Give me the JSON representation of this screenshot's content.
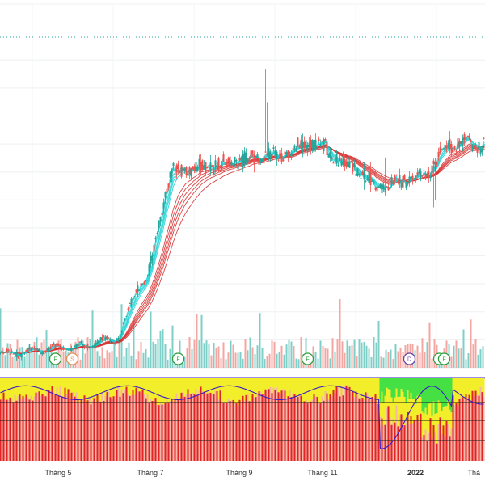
{
  "chart_data": {
    "type": "candlestick",
    "x_axis": {
      "tick_labels": [
        "Tháng 5",
        "Tháng 7",
        "Tháng 9",
        "Tháng 11",
        "2022",
        "Thá"
      ],
      "tick_positions": [
        "2021-05",
        "2021-07",
        "2021-09",
        "2021-11",
        "2022-01",
        "2022-03"
      ],
      "bold": [
        false,
        false,
        false,
        false,
        true,
        false
      ]
    },
    "price": {
      "start": 14,
      "key_points": [
        [
          0,
          14
        ],
        [
          90,
          15
        ],
        [
          140,
          16
        ],
        [
          175,
          24
        ],
        [
          215,
          40
        ],
        [
          320,
          42
        ],
        [
          390,
          44
        ],
        [
          430,
          41
        ],
        [
          470,
          38
        ],
        [
          520,
          39.5
        ],
        [
          560,
          44
        ]
      ],
      "ylim": [
        12,
        64
      ],
      "grid": true
    },
    "event_markers": [
      {
        "label": "F",
        "bar": 68,
        "color": "#2e9e3e"
      },
      {
        "label": "S",
        "bar": 89,
        "color": "#e0905a"
      },
      {
        "label": "F",
        "bar": 220,
        "color": "#2e9e3e"
      },
      {
        "label": "F",
        "bar": 380,
        "color": "#2e9e3e"
      },
      {
        "label": "D",
        "bar": 506,
        "color": "#6a3fa0"
      },
      {
        "label": "F",
        "bar": 543,
        "color": "#2e9e3e"
      },
      {
        "label": "F",
        "bar": 549,
        "color": "#2e9e3e"
      }
    ],
    "moving_averages": {
      "short_color": "#1fd3d6",
      "long_color": "#d83030",
      "short_count": 6,
      "long_count": 6
    },
    "oscillator": {
      "type": "area",
      "colors": {
        "strong": "#e02626",
        "light": "#f4b7a8",
        "mid": "#f2ee2a",
        "bull": "#44e044",
        "line": "#3a1cc8"
      }
    },
    "colors": {
      "up": "#26a69a",
      "down": "#ef5350",
      "volume_up": "#7fcfc8",
      "volume_down": "#f4a6a2",
      "dotted_line": "#26a69a"
    }
  }
}
